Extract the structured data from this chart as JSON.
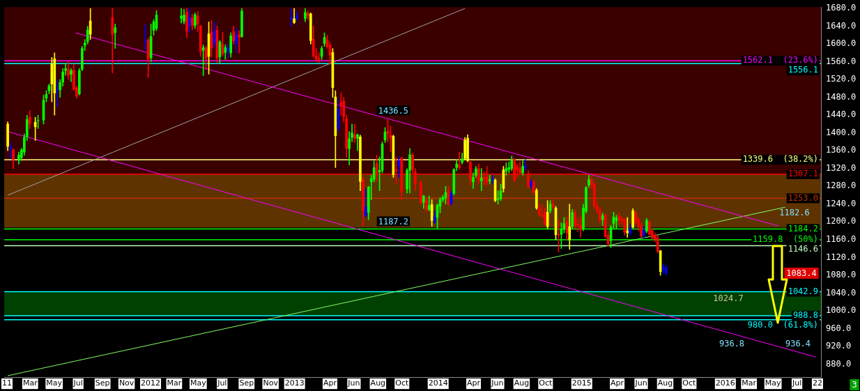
{
  "chart_data": {
    "type": "candlestick",
    "x": [
      "2011-01-03",
      "2011-01-10",
      "2011-01-17",
      "2011-01-31",
      "2011-02-07",
      "2011-02-14",
      "2011-02-21",
      "2011-02-28",
      "2011-03-14",
      "2011-03-21",
      "2011-04-04",
      "2011-04-11",
      "2011-04-18",
      "2011-04-25",
      "2011-05-02",
      "2011-05-09",
      "2011-05-16",
      "2011-05-23",
      "2011-05-30",
      "2011-06-06",
      "2011-06-13",
      "2011-06-20",
      "2011-06-27",
      "2011-07-04",
      "2011-07-11",
      "2011-07-18",
      "2011-07-25",
      "2011-08-01",
      "2011-09-26",
      "2011-10-03",
      "2011-12-19",
      "2011-12-26",
      "2012-01-02",
      "2012-01-09",
      "2012-01-16",
      "2012-03-19",
      "2012-03-26",
      "2012-04-02",
      "2012-04-09",
      "2012-04-16",
      "2012-04-23",
      "2012-04-30",
      "2012-05-07",
      "2012-05-14",
      "2012-05-21",
      "2012-05-28",
      "2012-06-04",
      "2012-06-11",
      "2012-06-18",
      "2012-06-25",
      "2012-07-02",
      "2012-07-09",
      "2012-07-16",
      "2012-07-23",
      "2012-07-30",
      "2012-08-06",
      "2012-08-13",
      "2012-08-20",
      "2012-12-24",
      "2012-12-31",
      "2013-01-07",
      "2013-01-28",
      "2013-02-04",
      "2013-02-11",
      "2013-02-18",
      "2013-02-25",
      "2013-03-04",
      "2013-03-11",
      "2013-03-18",
      "2013-03-25",
      "2013-04-01",
      "2013-04-08",
      "2013-04-15",
      "2013-04-22",
      "2013-04-29",
      "2013-05-06",
      "2013-05-13",
      "2013-05-20",
      "2013-05-27",
      "2013-06-03",
      "2013-06-10",
      "2013-06-17",
      "2013-06-24",
      "2013-07-01",
      "2013-07-08",
      "2013-07-15",
      "2013-07-22",
      "2013-07-29",
      "2013-08-05",
      "2013-08-12",
      "2013-08-19",
      "2013-08-26",
      "2013-09-02",
      "2013-09-09",
      "2013-09-16",
      "2013-09-23",
      "2013-09-30",
      "2013-10-14",
      "2013-10-21",
      "2013-10-28",
      "2013-11-04",
      "2013-11-18",
      "2013-11-25",
      "2013-12-02",
      "2013-12-09",
      "2013-12-16",
      "2013-12-23",
      "2013-12-30",
      "2014-01-06",
      "2014-01-13",
      "2014-01-20",
      "2014-01-27",
      "2014-02-03",
      "2014-02-10",
      "2014-02-17",
      "2014-02-24",
      "2014-03-03",
      "2014-03-10",
      "2014-03-17",
      "2014-03-24",
      "2014-03-31",
      "2014-04-07",
      "2014-04-14",
      "2014-04-21",
      "2014-04-28",
      "2014-05-05",
      "2014-05-12",
      "2014-05-19",
      "2014-05-26",
      "2014-06-02",
      "2014-06-09",
      "2014-06-16",
      "2014-06-23",
      "2014-06-30",
      "2014-07-07",
      "2014-07-14",
      "2014-07-21",
      "2014-07-28",
      "2014-08-04",
      "2014-08-11",
      "2014-08-18",
      "2014-08-25",
      "2014-09-01",
      "2014-09-08",
      "2014-09-15",
      "2014-09-22",
      "2014-09-29",
      "2014-10-06",
      "2014-10-13",
      "2014-10-20",
      "2014-10-27",
      "2014-11-03",
      "2014-11-10",
      "2014-11-17",
      "2014-11-24",
      "2014-12-01",
      "2014-12-08",
      "2014-12-15",
      "2014-12-22",
      "2014-12-29",
      "2015-01-05",
      "2015-01-12",
      "2015-01-19",
      "2015-01-26",
      "2015-02-02",
      "2015-02-09",
      "2015-02-16",
      "2015-02-23",
      "2015-03-02",
      "2015-03-09",
      "2015-03-16",
      "2015-03-23",
      "2015-03-30",
      "2015-04-06",
      "2015-04-13",
      "2015-04-20",
      "2015-04-27",
      "2015-05-04",
      "2015-05-11",
      "2015-05-18",
      "2015-05-25",
      "2015-06-01",
      "2015-06-08",
      "2015-06-15",
      "2015-06-22",
      "2015-06-29",
      "2015-07-06",
      "2015-07-13",
      "2015-07-20",
      "2015-07-27",
      "2015-08-03"
    ],
    "ohlc": [
      [
        1420,
        1425,
        1360,
        1370
      ],
      [
        1368,
        1378,
        1343,
        1365
      ],
      [
        1362,
        1365,
        1320,
        1340
      ],
      [
        1340,
        1357,
        1330,
        1350
      ],
      [
        1345,
        1365,
        1338,
        1362
      ],
      [
        1357,
        1398,
        1350,
        1390
      ],
      [
        1391,
        1440,
        1383,
        1430
      ],
      [
        1435,
        1450,
        1410,
        1421
      ],
      [
        1424,
        1435,
        1383,
        1414
      ],
      [
        1427,
        1440,
        1410,
        1428
      ],
      [
        1429,
        1485,
        1420,
        1474
      ],
      [
        1478,
        1495,
        1470,
        1487
      ],
      [
        1495,
        1510,
        1488,
        1506
      ],
      [
        1555,
        1570,
        1470,
        1510
      ],
      [
        1567,
        1580,
        1440,
        1490
      ],
      [
        1498,
        1520,
        1460,
        1495
      ],
      [
        1497,
        1520,
        1480,
        1513
      ],
      [
        1514,
        1545,
        1505,
        1537
      ],
      [
        1540,
        1555,
        1530,
        1545
      ],
      [
        1544,
        1560,
        1520,
        1529
      ],
      [
        1532,
        1545,
        1515,
        1540
      ],
      [
        1541,
        1555,
        1495,
        1499
      ],
      [
        1501,
        1505,
        1478,
        1483
      ],
      [
        1488,
        1545,
        1485,
        1540
      ],
      [
        1543,
        1595,
        1540,
        1590
      ],
      [
        1597,
        1610,
        1585,
        1602
      ],
      [
        1606,
        1640,
        1600,
        1632
      ],
      [
        1652,
        1680,
        1610,
        1622
      ],
      [
        1660,
        1680,
        1535,
        1621
      ],
      [
        1626,
        1645,
        1590,
        1637
      ],
      [
        1608,
        1644,
        1586,
        1606
      ],
      [
        1609,
        1613,
        1525,
        1566
      ],
      [
        1569,
        1645,
        1560,
        1617
      ],
      [
        1631,
        1655,
        1620,
        1650
      ],
      [
        1635,
        1675,
        1630,
        1665
      ],
      [
        1658,
        1680,
        1647,
        1663
      ],
      [
        1651,
        1678,
        1645,
        1665
      ],
      [
        1672,
        1680,
        1614,
        1629
      ],
      [
        1660,
        1680,
        1626,
        1641
      ],
      [
        1659,
        1667,
        1632,
        1642
      ],
      [
        1642,
        1670,
        1635,
        1666
      ],
      [
        1663,
        1673,
        1628,
        1645
      ],
      [
        1641,
        1642,
        1572,
        1583
      ],
      [
        1586,
        1598,
        1529,
        1592
      ],
      [
        1591,
        1595,
        1543,
        1568
      ],
      [
        1623,
        1650,
        1532,
        1572
      ],
      [
        1627,
        1653,
        1570,
        1591
      ],
      [
        1629,
        1650,
        1590,
        1601
      ],
      [
        1631,
        1640,
        1558,
        1568
      ],
      [
        1571,
        1608,
        1558,
        1605
      ],
      [
        1600,
        1626,
        1573,
        1578
      ],
      [
        1581,
        1598,
        1565,
        1592
      ],
      [
        1592,
        1600,
        1570,
        1585
      ],
      [
        1580,
        1625,
        1570,
        1618
      ],
      [
        1628,
        1640,
        1600,
        1608
      ],
      [
        1621,
        1635,
        1580,
        1600
      ],
      [
        1621,
        1630,
        1580,
        1615
      ],
      [
        1617,
        1680,
        1615,
        1674
      ],
      [
        1659,
        1680,
        1640,
        1656
      ],
      [
        1657,
        1680,
        1646,
        1648
      ],
      [
        1663,
        1674,
        1652,
        1657
      ],
      [
        1657,
        1680,
        1650,
        1671
      ],
      [
        1669,
        1675,
        1655,
        1664
      ],
      [
        1668,
        1670,
        1600,
        1608
      ],
      [
        1611,
        1640,
        1570,
        1573
      ],
      [
        1573,
        1590,
        1560,
        1566
      ],
      [
        1568,
        1580,
        1558,
        1566
      ],
      [
        1572,
        1595,
        1565,
        1590
      ],
      [
        1601,
        1625,
        1595,
        1615
      ],
      [
        1610,
        1620,
        1590,
        1595
      ],
      [
        1598,
        1605,
        1555,
        1575
      ],
      [
        1581,
        1590,
        1480,
        1502
      ],
      [
        1481,
        1495,
        1322,
        1394
      ],
      [
        1454,
        1478,
        1402,
        1410
      ],
      [
        1468,
        1490,
        1440,
        1462
      ],
      [
        1471,
        1480,
        1425,
        1437
      ],
      [
        1432,
        1440,
        1345,
        1365
      ],
      [
        1365,
        1403,
        1328,
        1387
      ],
      [
        1390,
        1420,
        1380,
        1400
      ],
      [
        1396,
        1420,
        1378,
        1388
      ],
      [
        1388,
        1398,
        1360,
        1396
      ],
      [
        1391,
        1395,
        1270,
        1291
      ],
      [
        1295,
        1300,
        1190,
        1225
      ],
      [
        1234,
        1275,
        1210,
        1214
      ],
      [
        1221,
        1280,
        1205,
        1278
      ],
      [
        1290,
        1305,
        1250,
        1297
      ],
      [
        1296,
        1337,
        1290,
        1322
      ],
      [
        1331,
        1350,
        1290,
        1308
      ],
      [
        1312,
        1346,
        1270,
        1316
      ],
      [
        1316,
        1380,
        1310,
        1375
      ],
      [
        1384,
        1412,
        1378,
        1402
      ],
      [
        1404,
        1430,
        1380,
        1399
      ],
      [
        1396,
        1415,
        1358,
        1390
      ],
      [
        1393,
        1395,
        1300,
        1306
      ],
      [
        1318,
        1345,
        1285,
        1315
      ],
      [
        1338,
        1347,
        1300,
        1326
      ],
      [
        1344,
        1345,
        1250,
        1268
      ],
      [
        1274,
        1320,
        1265,
        1316
      ],
      [
        1316,
        1365,
        1265,
        1351
      ],
      [
        1350,
        1355,
        1310,
        1318
      ],
      [
        1312,
        1320,
        1270,
        1285
      ],
      [
        1289,
        1292,
        1240,
        1243
      ],
      [
        1244,
        1260,
        1230,
        1258
      ],
      [
        1249,
        1255,
        1222,
        1228
      ],
      [
        1227,
        1258,
        1225,
        1237
      ],
      [
        1239,
        1250,
        1190,
        1203
      ],
      [
        1212,
        1225,
        1196,
        1200
      ],
      [
        1210,
        1240,
        1186,
        1238
      ],
      [
        1235,
        1255,
        1220,
        1250
      ],
      [
        1250,
        1260,
        1245,
        1255
      ],
      [
        1254,
        1280,
        1240,
        1266
      ],
      [
        1270,
        1280,
        1237,
        1240
      ],
      [
        1264,
        1270,
        1238,
        1241
      ],
      [
        1264,
        1320,
        1260,
        1318
      ],
      [
        1322,
        1340,
        1315,
        1330
      ],
      [
        1328,
        1357,
        1318,
        1322
      ],
      [
        1334,
        1355,
        1330,
        1342
      ],
      [
        1384,
        1390,
        1340,
        1343
      ],
      [
        1388,
        1396,
        1335,
        1338
      ],
      [
        1335,
        1336,
        1283,
        1294
      ],
      [
        1290,
        1310,
        1275,
        1300
      ],
      [
        1305,
        1325,
        1300,
        1319
      ],
      [
        1320,
        1330,
        1285,
        1293
      ],
      [
        1292,
        1320,
        1270,
        1299
      ],
      [
        1300,
        1312,
        1282,
        1296
      ],
      [
        1301,
        1325,
        1282,
        1288
      ],
      [
        1292,
        1305,
        1285,
        1295
      ],
      [
        1296,
        1305,
        1285,
        1294
      ],
      [
        1294,
        1297,
        1245,
        1248
      ],
      [
        1250,
        1270,
        1240,
        1252
      ],
      [
        1252,
        1285,
        1248,
        1270
      ],
      [
        1275,
        1325,
        1267,
        1317
      ],
      [
        1314,
        1333,
        1305,
        1320
      ],
      [
        1318,
        1335,
        1310,
        1322
      ],
      [
        1320,
        1348,
        1315,
        1340
      ],
      [
        1340,
        1343,
        1290,
        1294
      ],
      [
        1325,
        1330,
        1300,
        1317
      ],
      [
        1320,
        1335,
        1306,
        1310
      ],
      [
        1310,
        1337,
        1305,
        1325
      ],
      [
        1325,
        1340,
        1315,
        1322
      ],
      [
        1305,
        1315,
        1277,
        1279
      ],
      [
        1290,
        1295,
        1275,
        1282
      ],
      [
        1290,
        1293,
        1262,
        1266
      ],
      [
        1271,
        1275,
        1228,
        1231
      ],
      [
        1229,
        1240,
        1213,
        1217
      ],
      [
        1215,
        1240,
        1210,
        1213
      ],
      [
        1220,
        1232,
        1192,
        1194
      ],
      [
        1190,
        1248,
        1185,
        1222
      ],
      [
        1225,
        1248,
        1220,
        1240
      ],
      [
        1240,
        1250,
        1230,
        1234
      ],
      [
        1231,
        1235,
        1160,
        1171
      ],
      [
        1172,
        1205,
        1132,
        1170
      ],
      [
        1172,
        1198,
        1140,
        1183
      ],
      [
        1183,
        1210,
        1175,
        1196
      ],
      [
        1200,
        1210,
        1160,
        1175
      ],
      [
        1189,
        1240,
        1138,
        1160
      ],
      [
        1189,
        1228,
        1185,
        1221
      ],
      [
        1220,
        1227,
        1185,
        1193
      ],
      [
        1195,
        1208,
        1178,
        1193
      ],
      [
        1193,
        1213,
        1165,
        1182
      ],
      [
        1184,
        1240,
        1180,
        1231
      ],
      [
        1224,
        1280,
        1220,
        1277
      ],
      [
        1283,
        1305,
        1278,
        1295
      ],
      [
        1296,
        1303,
        1275,
        1283
      ],
      [
        1285,
        1288,
        1230,
        1235
      ],
      [
        1234,
        1245,
        1220,
        1226
      ],
      [
        1226,
        1232,
        1198,
        1204
      ],
      [
        1205,
        1220,
        1192,
        1214
      ],
      [
        1216,
        1218,
        1165,
        1167
      ],
      [
        1170,
        1180,
        1145,
        1151
      ],
      [
        1158,
        1192,
        1142,
        1188
      ],
      [
        1196,
        1222,
        1185,
        1211
      ],
      [
        1203,
        1215,
        1185,
        1209
      ],
      [
        1212,
        1220,
        1195,
        1205
      ],
      [
        1206,
        1212,
        1195,
        1203
      ],
      [
        1206,
        1208,
        1170,
        1177
      ],
      [
        1180,
        1210,
        1165,
        1175
      ],
      [
        1186,
        1195,
        1170,
        1175
      ],
      [
        1188,
        1230,
        1186,
        1225
      ],
      [
        1221,
        1225,
        1195,
        1201
      ],
      [
        1205,
        1210,
        1180,
        1190
      ],
      [
        1192,
        1198,
        1165,
        1168
      ],
      [
        1180,
        1190,
        1163,
        1170
      ],
      [
        1179,
        1208,
        1175,
        1203
      ],
      [
        1200,
        1203,
        1170,
        1172
      ],
      [
        1180,
        1185,
        1160,
        1164
      ],
      [
        1170,
        1175,
        1155,
        1162
      ],
      [
        1164,
        1170,
        1130,
        1134
      ],
      [
        1135,
        1136,
        1080,
        1088
      ],
      [
        1099,
        1106,
        1085,
        1093
      ],
      [
        1096,
        1103,
        1080,
        1083.4
      ]
    ],
    "colors": [
      "#ffff00",
      "#0000ff",
      "#ff0000",
      "#00ff00",
      "#00ff00",
      "#00ff00",
      "#00ff00",
      "#ff0000",
      "#ffff00",
      "#00ff00",
      "#00ff00",
      "#00ff00",
      "#00ff00",
      "#ffff00",
      "#ffff00",
      "#0000ff",
      "#00ff00",
      "#00ff00",
      "#00ff00",
      "#ff0000",
      "#00ff00",
      "#ff0000",
      "#ff0000",
      "#00ff00",
      "#00ff00",
      "#00ff00",
      "#00ff00",
      "#ffff00",
      "#ff0000",
      "#00ff00",
      "#0000ff",
      "#ff0000",
      "#00ff00",
      "#00ff00",
      "#00ff00",
      "#00ff00",
      "#00ff00",
      "#ff0000",
      "#0000ff",
      "#ff0000",
      "#00ff00",
      "#ff0000",
      "#ff0000",
      "#00ff00",
      "#ff0000",
      "#ffff00",
      "#ff0000",
      "#0000ff",
      "#ff0000",
      "#00ff00",
      "#ff0000",
      "#00ff00",
      "#0000ff",
      "#00ff00",
      "#ff0000",
      "#0000ff",
      "#ff0000",
      "#00ff00",
      "#0000ff",
      "#ffff00",
      "#0000ff",
      "#00ff00",
      "#ff0000",
      "#ffff00",
      "#ff0000",
      "#ff0000",
      "#ff0000",
      "#00ff00",
      "#00ff00",
      "#ff0000",
      "#ff0000",
      "#ffff00",
      "#ffff00",
      "#0000ff",
      "#ff0000",
      "#ff0000",
      "#ff0000",
      "#00ff00",
      "#00ff00",
      "#ff0000",
      "#00ff00",
      "#ffff00",
      "#ff0000",
      "#0000ff",
      "#00ff00",
      "#00ff00",
      "#00ff00",
      "#ff0000",
      "#00ff00",
      "#00ff00",
      "#00ff00",
      "#ff0000",
      "#ff0000",
      "#ffff00",
      "#ff0000",
      "#0000ff",
      "#ff0000",
      "#00ff00",
      "#00ff00",
      "#ff0000",
      "#ff0000",
      "#ff0000",
      "#00ff00",
      "#ff0000",
      "#00ff00",
      "#ffff00",
      "#0000ff",
      "#00ff00",
      "#00ff00",
      "#00ff00",
      "#00ff00",
      "#ff0000",
      "#0000ff",
      "#00ff00",
      "#00ff00",
      "#ff0000",
      "#00ff00",
      "#ffff00",
      "#ffff00",
      "#ff0000",
      "#00ff00",
      "#00ff00",
      "#ff0000",
      "#00ff00",
      "#ff0000",
      "#ff0000",
      "#00ff00",
      "#0000ff",
      "#ffff00",
      "#00ff00",
      "#00ff00",
      "#ffff00",
      "#00ff00",
      "#00ff00",
      "#00ff00",
      "#ff0000",
      "#ff0000",
      "#ff0000",
      "#00ff00",
      "#0000ff",
      "#ff0000",
      "#0000ff",
      "#ff0000",
      "#ffff00",
      "#ff0000",
      "#ff0000",
      "#ff0000",
      "#ffff00",
      "#00ff00",
      "#ff0000",
      "#ffff00",
      "#ff0000",
      "#00ff00",
      "#00ff00",
      "#ff0000",
      "#ffff00",
      "#00ff00",
      "#ff0000",
      "#ff0000",
      "#ff0000",
      "#00ff00",
      "#00ff00",
      "#00ff00",
      "#ff0000",
      "#ff0000",
      "#ff0000",
      "#ff0000",
      "#00ff00",
      "#ff0000",
      "#ff0000",
      "#00ff00",
      "#00ff00",
      "#00ff00",
      "#ff0000",
      "#ff0000",
      "#ff0000",
      "#ffff00",
      "#0000ff",
      "#ffff00",
      "#ff0000",
      "#ff0000",
      "#ff0000",
      "#0000ff",
      "#00ff00",
      "#ff0000",
      "#ff0000",
      "#ff0000",
      "#ff0000",
      "#ffff00",
      "#0000ff",
      "#0000ff"
    ],
    "series": [
      {
        "type": "line",
        "color": "#ff00ff",
        "x": [
          "2011-06-24",
          "2016-05-14"
        ],
        "values": [
          1625,
          1191
        ]
      },
      {
        "type": "line",
        "color": "#ff00ff",
        "x": [
          "2011-01-03",
          "2016-08-18"
        ],
        "values": [
          1403,
          896
        ]
      },
      {
        "type": "line",
        "color": "#a0a0a0",
        "x": [
          "2011-01-03",
          "2014-03-10"
        ],
        "values": [
          1260,
          1680
        ]
      },
      {
        "type": "line",
        "color": "#80ff60",
        "x": [
          "2011-01-03",
          "2016-06-01"
        ],
        "values": [
          854,
          1233
        ]
      }
    ],
    "bands": [
      {
        "axis": "y",
        "from": 1307.1,
        "to": 1683,
        "color": "#3a0000"
      },
      {
        "axis": "y",
        "from": 1187.2,
        "to": 1307.1,
        "color": "#5e3300"
      },
      {
        "axis": "y",
        "from": 988.8,
        "to": 1042.9,
        "color": "#004000"
      }
    ],
    "ref_lines": [
      {
        "axis": "y",
        "value": 1562.1,
        "label": "1562.1  (23.6%)",
        "color": "#ff00ff"
      },
      {
        "axis": "y",
        "value": 1556.1,
        "label": "1556.1",
        "color": "#00ffff"
      },
      {
        "axis": "y",
        "value": 1339.6,
        "label": "1339.6  (38.2%)",
        "color": "#ffff80"
      },
      {
        "axis": "y",
        "value": 1307.1,
        "label": "1307.1",
        "color": "#ff0000"
      },
      {
        "axis": "y",
        "value": 1253.0,
        "label": "1253.0",
        "color": "#c03000"
      },
      {
        "axis": "y",
        "value": 1184.2,
        "label": "1184.2",
        "color": "#00ff00"
      },
      {
        "axis": "y",
        "value": 1159.8,
        "label": "1159.8  (50%)",
        "color": "#00ff00"
      },
      {
        "axis": "y",
        "value": 1146.6,
        "label": "1146.6",
        "color": "#c0ffc0"
      },
      {
        "axis": "y",
        "value": 1042.9,
        "label": "1042.9",
        "color": "#00ffff"
      },
      {
        "axis": "y",
        "value": 988.8,
        "label": "988.8",
        "color": "#00ffff"
      },
      {
        "axis": "y",
        "value": 980.0,
        "label": "980.0  (61.8%)",
        "color": "#00ffff"
      }
    ],
    "annotations": [
      {
        "text": "1436.5",
        "x": "2013-09-09",
        "y": 1436.5
      },
      {
        "text": "1187.2",
        "x": "2013-09-09",
        "y": 1187.2
      },
      "1182.6",
      "1083.4",
      "1024.7",
      "936.8",
      "936.4",
      "3"
    ],
    "xlim": [
      "2010-12-25",
      "2016-08-31"
    ],
    "xticks": [
      {
        "value": "2011-01-01",
        "label": "11"
      },
      {
        "value": "2011-03-01",
        "label": "Mar"
      },
      {
        "value": "2011-05-01",
        "label": "May"
      },
      {
        "value": "2011-07-01",
        "label": "Jul"
      },
      {
        "value": "2011-09-01",
        "label": "Sep"
      },
      {
        "value": "2011-11-01",
        "label": "Nov"
      },
      {
        "value": "2012-01-01",
        "label": "2012"
      },
      {
        "value": "2012-03-01",
        "label": "Mar"
      },
      {
        "value": "2012-05-01",
        "label": "May"
      },
      {
        "value": "2012-07-01",
        "label": "Jul"
      },
      {
        "value": "2012-09-01",
        "label": "Sep"
      },
      {
        "value": "2012-11-01",
        "label": "Nov"
      },
      {
        "value": "2013-01-01",
        "label": "2013"
      },
      {
        "value": "2013-04-01",
        "label": "Apr"
      },
      {
        "value": "2013-06-01",
        "label": "Jun"
      },
      {
        "value": "2013-08-01",
        "label": "Aug"
      },
      {
        "value": "2013-10-01",
        "label": "Oct"
      },
      {
        "value": "2014-01-01",
        "label": "2014"
      },
      {
        "value": "2014-04-01",
        "label": "Apr"
      },
      {
        "value": "2014-06-01",
        "label": "Jun"
      },
      {
        "value": "2014-08-01",
        "label": "Aug"
      },
      {
        "value": "2014-10-01",
        "label": "Oct"
      },
      {
        "value": "2015-01-01",
        "label": "2015"
      },
      {
        "value": "2015-04-01",
        "label": "Apr"
      },
      {
        "value": "2015-06-01",
        "label": "Jun"
      },
      {
        "value": "2015-08-01",
        "label": "Aug"
      },
      {
        "value": "2015-10-01",
        "label": "Oct"
      },
      {
        "value": "2016-01-01",
        "label": "2016"
      },
      {
        "value": "2016-03-01",
        "label": "Mar"
      },
      {
        "value": "2016-05-01",
        "label": "May"
      },
      {
        "value": "2016-07-01",
        "label": "Jul"
      },
      {
        "value": "2016-08-22",
        "label": "22"
      }
    ],
    "ylim": [
      851,
      1683
    ],
    "yticks": [
      {
        "value": 880,
        "label": "880.0"
      },
      {
        "value": 920,
        "label": "920.0"
      },
      {
        "value": 960,
        "label": "960.0"
      },
      {
        "value": 1000,
        "label": "1000.0"
      },
      {
        "value": 1040,
        "label": "1040.0"
      },
      {
        "value": 1080,
        "label": "1080.0"
      },
      {
        "value": 1120,
        "label": "1120.0"
      },
      {
        "value": 1160,
        "label": "1160.0"
      },
      {
        "value": 1200,
        "label": "1200.0"
      },
      {
        "value": 1240,
        "label": "1240.0"
      },
      {
        "value": 1280,
        "label": "1280.0"
      },
      {
        "value": 1320,
        "label": "1320.0"
      },
      {
        "value": 1360,
        "label": "1360.0"
      },
      {
        "value": 1400,
        "label": "1400.0"
      },
      {
        "value": 1440,
        "label": "1440.0"
      },
      {
        "value": 1480,
        "label": "1480.0"
      },
      {
        "value": 1520,
        "label": "1520.0"
      },
      {
        "value": 1560,
        "label": "1560.0"
      },
      {
        "value": 1600,
        "label": "1600.0"
      },
      {
        "value": 1640,
        "label": "1640.0"
      },
      {
        "value": 1680,
        "label": "1680.0"
      }
    ],
    "grid": false,
    "legend": false,
    "marker": "none"
  }
}
